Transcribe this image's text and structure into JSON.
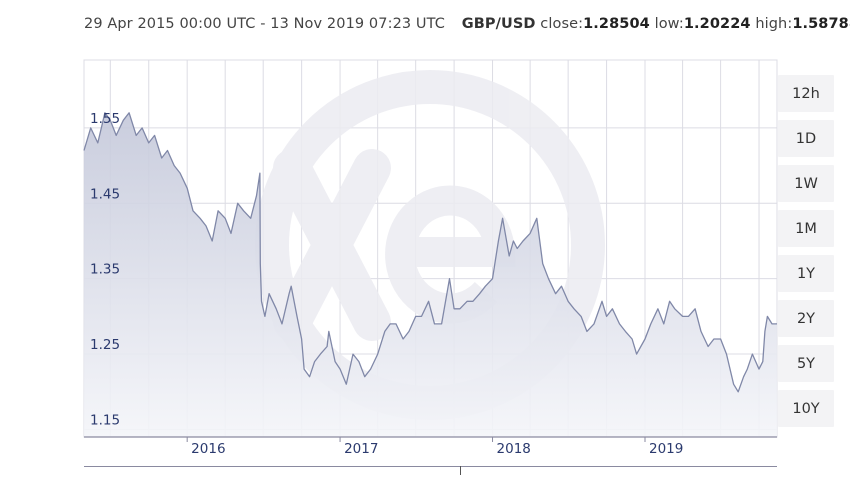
{
  "header": {
    "date_range": "29 Apr 2015 00:00 UTC - 13 Nov 2019 07:23 UTC",
    "pair": "GBP/USD",
    "close_label": "close:",
    "close_value": "1.28504",
    "low_label": "low:",
    "low_value": "1.20224",
    "high_label": "high:",
    "high_value": "1.58788"
  },
  "range_buttons": [
    "12h",
    "1D",
    "1W",
    "1M",
    "1Y",
    "2Y",
    "5Y",
    "10Y"
  ],
  "colors": {
    "line": "#8088a8",
    "fill_top": "#c4c8da",
    "fill_bottom": "#f4f5f9",
    "grid": "#dcdce4",
    "axis_text": "#2b3a6e",
    "watermark": "#ececf1"
  },
  "chart_data": {
    "type": "area",
    "x_start": "2015-04-29",
    "x_end": "2019-11-13",
    "x_ticks": [
      "2016",
      "2017",
      "2018",
      "2019"
    ],
    "y_ticks": [
      "1.15",
      "1.25",
      "1.35",
      "1.45",
      "1.55"
    ],
    "ylim": [
      1.14,
      1.64
    ],
    "grid": true,
    "series": [
      {
        "x": [
          "2015-04-29",
          "2015-05-15",
          "2015-06-01",
          "2015-06-18",
          "2015-07-01",
          "2015-07-15",
          "2015-08-01",
          "2015-08-15",
          "2015-09-01",
          "2015-09-15",
          "2015-10-01",
          "2015-10-15",
          "2015-11-01",
          "2015-11-15",
          "2015-12-01",
          "2015-12-15",
          "2016-01-01",
          "2016-01-15",
          "2016-02-01",
          "2016-02-15",
          "2016-03-01",
          "2016-03-15",
          "2016-04-01",
          "2016-04-15",
          "2016-05-01",
          "2016-05-15",
          "2016-06-01",
          "2016-06-15",
          "2016-06-23",
          "2016-06-24",
          "2016-06-27",
          "2016-07-05",
          "2016-07-15",
          "2016-08-01",
          "2016-08-15",
          "2016-09-01",
          "2016-09-06",
          "2016-09-20",
          "2016-10-01",
          "2016-10-07",
          "2016-10-20",
          "2016-11-01",
          "2016-11-15",
          "2016-12-01",
          "2016-12-05",
          "2016-12-20",
          "2017-01-01",
          "2017-01-16",
          "2017-02-01",
          "2017-02-15",
          "2017-03-01",
          "2017-03-15",
          "2017-04-01",
          "2017-04-18",
          "2017-05-01",
          "2017-05-15",
          "2017-06-01",
          "2017-06-15",
          "2017-07-01",
          "2017-07-15",
          "2017-08-01",
          "2017-08-15",
          "2017-09-01",
          "2017-09-20",
          "2017-10-01",
          "2017-10-15",
          "2017-11-01",
          "2017-11-15",
          "2017-12-01",
          "2017-12-15",
          "2018-01-01",
          "2018-01-15",
          "2018-01-25",
          "2018-02-10",
          "2018-02-20",
          "2018-03-01",
          "2018-03-15",
          "2018-04-01",
          "2018-04-17",
          "2018-05-01",
          "2018-05-15",
          "2018-06-01",
          "2018-06-15",
          "2018-07-01",
          "2018-07-15",
          "2018-08-01",
          "2018-08-15",
          "2018-09-01",
          "2018-09-20",
          "2018-10-01",
          "2018-10-15",
          "2018-11-01",
          "2018-11-15",
          "2018-12-01",
          "2018-12-12",
          "2019-01-01",
          "2019-01-15",
          "2019-02-01",
          "2019-02-15",
          "2019-03-01",
          "2019-03-13",
          "2019-04-01",
          "2019-04-15",
          "2019-05-01",
          "2019-05-15",
          "2019-06-01",
          "2019-06-15",
          "2019-07-01",
          "2019-07-15",
          "2019-08-01",
          "2019-08-12",
          "2019-08-25",
          "2019-09-03",
          "2019-09-15",
          "2019-10-01",
          "2019-10-10",
          "2019-10-15",
          "2019-10-21",
          "2019-11-01",
          "2019-11-13"
        ],
        "y": [
          1.52,
          1.55,
          1.53,
          1.57,
          1.56,
          1.54,
          1.56,
          1.57,
          1.54,
          1.55,
          1.53,
          1.54,
          1.51,
          1.52,
          1.5,
          1.49,
          1.47,
          1.44,
          1.43,
          1.42,
          1.4,
          1.44,
          1.43,
          1.41,
          1.45,
          1.44,
          1.43,
          1.46,
          1.49,
          1.37,
          1.32,
          1.3,
          1.33,
          1.31,
          1.29,
          1.33,
          1.34,
          1.3,
          1.27,
          1.23,
          1.22,
          1.24,
          1.25,
          1.26,
          1.28,
          1.24,
          1.23,
          1.21,
          1.25,
          1.24,
          1.22,
          1.23,
          1.25,
          1.28,
          1.29,
          1.29,
          1.27,
          1.28,
          1.3,
          1.3,
          1.32,
          1.29,
          1.29,
          1.35,
          1.31,
          1.31,
          1.32,
          1.32,
          1.33,
          1.34,
          1.35,
          1.4,
          1.43,
          1.38,
          1.4,
          1.39,
          1.4,
          1.41,
          1.43,
          1.37,
          1.35,
          1.33,
          1.34,
          1.32,
          1.31,
          1.3,
          1.28,
          1.29,
          1.32,
          1.3,
          1.31,
          1.29,
          1.28,
          1.27,
          1.25,
          1.27,
          1.29,
          1.31,
          1.29,
          1.32,
          1.31,
          1.3,
          1.3,
          1.31,
          1.28,
          1.26,
          1.27,
          1.27,
          1.25,
          1.21,
          1.2,
          1.22,
          1.23,
          1.25,
          1.23,
          1.24,
          1.28,
          1.3,
          1.29,
          1.29
        ]
      }
    ]
  }
}
